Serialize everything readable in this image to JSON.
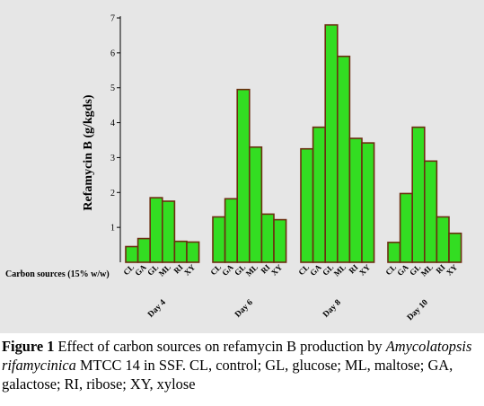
{
  "chart_data": {
    "type": "bar",
    "ylabel": "Refamycin B (g/kgds)",
    "xlabel": "Carbon sources (15% w/w)",
    "ylim": [
      0,
      7
    ],
    "yticks": [
      1,
      2,
      3,
      4,
      5,
      6,
      7
    ],
    "bar_color": "#33dd22",
    "bar_edge_color": "#6b2e10",
    "groups": [
      {
        "name": "Day 4",
        "categories": [
          "CL",
          "GA",
          "GL",
          "ML",
          "RI",
          "XY"
        ],
        "values": [
          0.45,
          0.68,
          1.85,
          1.75,
          0.6,
          0.58
        ]
      },
      {
        "name": "Day 6",
        "categories": [
          "CL",
          "GA",
          "GL",
          "ML",
          "RI",
          "XY"
        ],
        "values": [
          1.3,
          1.82,
          4.95,
          3.3,
          1.38,
          1.22
        ]
      },
      {
        "name": "Day 8",
        "categories": [
          "CL",
          "GA",
          "GL",
          "ML",
          "RI",
          "XY"
        ],
        "values": [
          3.25,
          3.87,
          6.8,
          5.9,
          3.55,
          3.42
        ]
      },
      {
        "name": "Day 10",
        "categories": [
          "CL",
          "GA",
          "GL",
          "ML",
          "RI",
          "XY"
        ],
        "values": [
          0.57,
          1.97,
          3.87,
          2.9,
          1.3,
          0.83
        ]
      }
    ]
  },
  "caption": {
    "label": "Figure  1",
    "text1": " Effect of carbon sources on refamycin B production by ",
    "species": "Amycolatopsis rifamycinica",
    "text2": " MTCC 14 in SSF.   CL,  control; GL, glucose; ML, maltose; GA, galactose; RI, ribose; XY, xylose"
  }
}
